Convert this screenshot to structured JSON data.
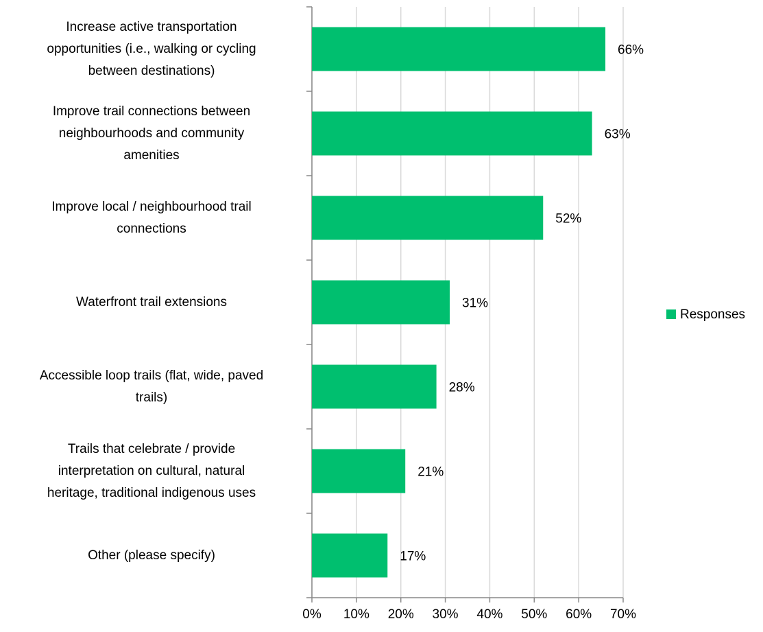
{
  "chart_data": {
    "type": "hbar",
    "categories": [
      "Increase active transportation\nopportunities (i.e., walking or cycling\nbetween destinations)",
      "Improve trail connections between\nneighbourhoods and community\namenities",
      "Improve local / neighbourhood trail\nconnections",
      "Waterfront trail extensions",
      "Accessible loop trails (flat, wide, paved\ntrails)",
      "Trails that celebrate / provide\ninterpretation on cultural, natural\nheritage, traditional indigenous uses",
      "Other (please specify)"
    ],
    "series": [
      {
        "name": "Responses",
        "color": "#00bf6f",
        "values": [
          66,
          63,
          52,
          31,
          28,
          21,
          17
        ],
        "value_labels": [
          "66%",
          "63%",
          "52%",
          "31%",
          "28%",
          "21%",
          "17%"
        ]
      }
    ],
    "xlim": [
      0,
      70
    ],
    "xticks": [
      {
        "value": 0,
        "label": "0%"
      },
      {
        "value": 10,
        "label": "10%"
      },
      {
        "value": 20,
        "label": "20%"
      },
      {
        "value": 30,
        "label": "30%"
      },
      {
        "value": 40,
        "label": "40%"
      },
      {
        "value": 50,
        "label": "50%"
      },
      {
        "value": 60,
        "label": "60%"
      },
      {
        "value": 70,
        "label": "70%"
      }
    ],
    "grid": true,
    "legend": "right"
  }
}
